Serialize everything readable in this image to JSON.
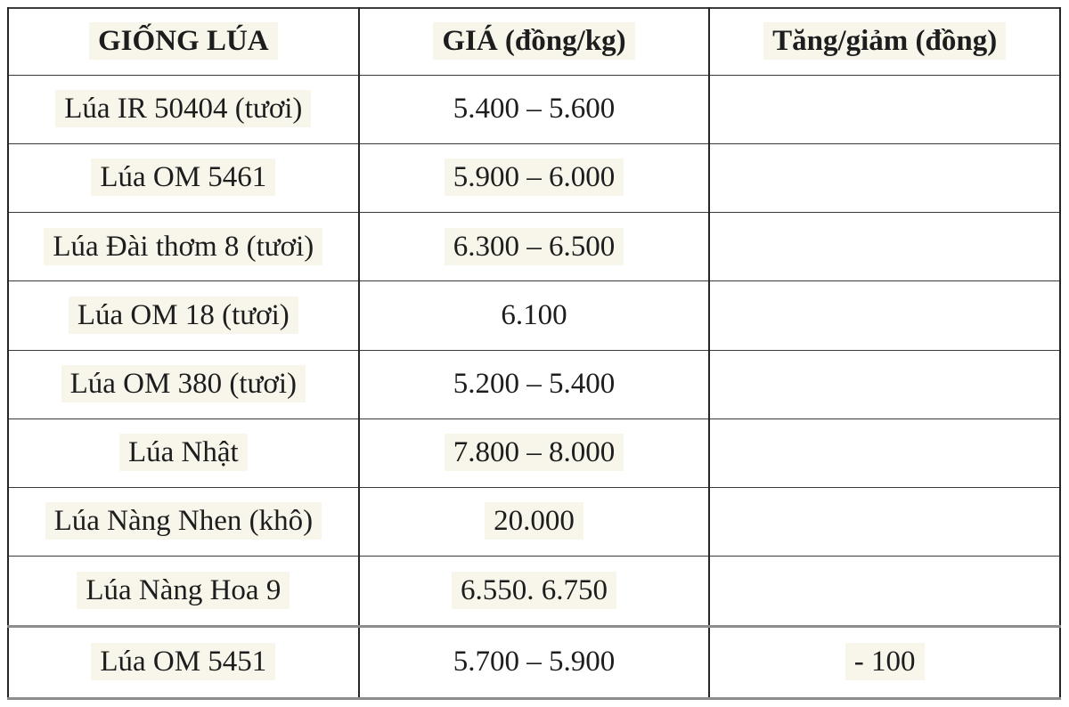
{
  "table": {
    "columns": [
      "GIỐNG LÚA",
      "GIÁ (đồng/kg)",
      "Tăng/giảm (đồng)"
    ],
    "rows": [
      {
        "variety": "Lúa IR 50404 (tươi)",
        "price": "5.400 – 5.600",
        "change": ""
      },
      {
        "variety": "Lúa OM 5461",
        "price": "5.900 – 6.000",
        "change": ""
      },
      {
        "variety": "Lúa Đài thơm 8 (tươi)",
        "price": "6.300 – 6.500",
        "change": ""
      },
      {
        "variety": "Lúa OM 18 (tươi)",
        "price": "6.100",
        "change": ""
      },
      {
        "variety": "Lúa OM 380 (tươi)",
        "price": "5.200 – 5.400",
        "change": ""
      },
      {
        "variety": "Lúa Nhật",
        "price": "7.800 – 8.000",
        "change": ""
      },
      {
        "variety": "Lúa Nàng Nhen (khô)",
        "price": "20.000",
        "change": ""
      },
      {
        "variety": "Lúa Nàng Hoa 9",
        "price": "6.550. 6.750",
        "change": ""
      },
      {
        "variety": "Lúa OM 5451",
        "price": "5.700 – 5.900",
        "change": "- 100"
      }
    ]
  },
  "chart_data": {
    "type": "table",
    "columns": [
      "GIỐNG LÚA",
      "GIÁ (đồng/kg)",
      "Tăng/giảm (đồng)"
    ],
    "rows": [
      [
        "Lúa IR 50404 (tươi)",
        "5.400 – 5.600",
        ""
      ],
      [
        "Lúa OM 5461",
        "5.900 – 6.000",
        ""
      ],
      [
        "Lúa Đài thơm 8 (tươi)",
        "6.300 – 6.500",
        ""
      ],
      [
        "Lúa OM 18 (tươi)",
        "6.100",
        ""
      ],
      [
        "Lúa OM 380 (tươi)",
        "5.200 – 5.400",
        ""
      ],
      [
        "Lúa Nhật",
        "7.800 – 8.000",
        ""
      ],
      [
        "Lúa Nàng Nhen (khô)",
        "20.000",
        ""
      ],
      [
        "Lúa Nàng Hoa 9",
        "6.550. 6.750",
        ""
      ],
      [
        "Lúa OM 5451",
        "5.700 – 5.900",
        "- 100"
      ]
    ],
    "notes": "Rice variety price table; only row 'Lúa OM 5451' shows a change value of - 100 đồng"
  },
  "colors": {
    "background": "#ffffff",
    "text": "#1d1d1d",
    "text_highlight": "#f8f5eb",
    "grid_dark": "#2b2b2b",
    "grid_gray": "#8c8c8c"
  }
}
